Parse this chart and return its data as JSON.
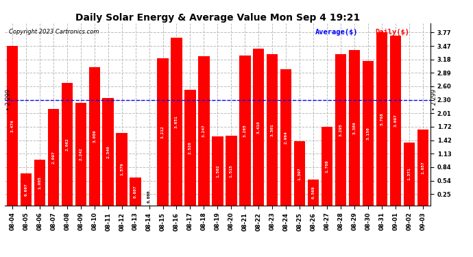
{
  "title": "Daily Solar Energy & Average Value Mon Sep 4 19:21",
  "copyright": "Copyright 2023 Cartronics.com",
  "legend_avg": "Average($)",
  "legend_daily": "Daily($)",
  "categories": [
    "08-04",
    "08-05",
    "08-06",
    "08-07",
    "08-08",
    "08-09",
    "08-10",
    "08-11",
    "08-12",
    "08-13",
    "08-14",
    "08-15",
    "08-16",
    "08-17",
    "08-18",
    "08-19",
    "08-20",
    "08-21",
    "08-22",
    "08-23",
    "08-24",
    "08-25",
    "08-26",
    "08-27",
    "08-28",
    "08-29",
    "08-30",
    "08-31",
    "09-01",
    "09-02",
    "09-03"
  ],
  "values": [
    3.476,
    0.697,
    1.005,
    2.097,
    2.662,
    2.242,
    3.009,
    2.34,
    1.579,
    0.607,
    0.0,
    3.212,
    3.651,
    2.52,
    3.247,
    1.502,
    1.515,
    3.265,
    3.41,
    3.301,
    2.964,
    1.397,
    0.569,
    1.708,
    3.295,
    3.389,
    3.15,
    3.768,
    3.697,
    1.371,
    1.657
  ],
  "average_line": 2.299,
  "average_label": "2.299",
  "bar_color": "#FF0000",
  "avg_line_color": "#0000FF",
  "grid_color": "#BBBBBB",
  "background_color": "#FFFFFF",
  "yticks": [
    0.25,
    0.54,
    0.84,
    1.13,
    1.42,
    1.72,
    2.01,
    2.3,
    2.6,
    2.89,
    3.18,
    3.47,
    3.77
  ],
  "ymin": 0.0,
  "ymax": 3.97,
  "title_fontsize": 10,
  "tick_fontsize": 6,
  "value_fontsize": 4.5,
  "copyright_fontsize": 6,
  "legend_fontsize": 7.5
}
